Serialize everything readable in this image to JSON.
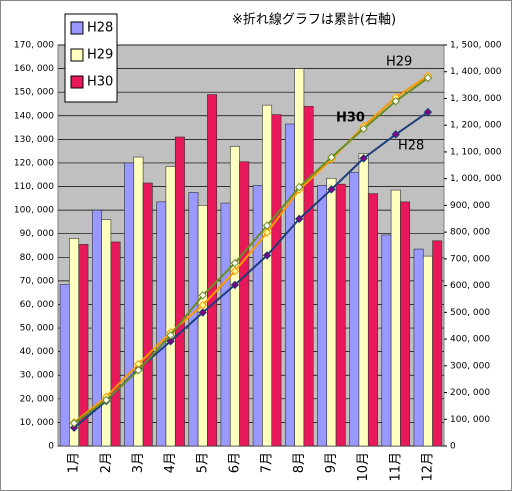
{
  "chart_data": {
    "type": "bar",
    "annotation": "※折れ線グラフは累計(右軸)",
    "categories": [
      "1月",
      "2月",
      "3月",
      "4月",
      "5月",
      "6月",
      "7月",
      "8月",
      "9月",
      "10月",
      "11月",
      "12月"
    ],
    "series": [
      {
        "name": "H28",
        "color": "#9999ff",
        "values": [
          68500,
          100000,
          120000,
          103500,
          107500,
          103000,
          110500,
          136500,
          110500,
          116000,
          89500,
          83500
        ]
      },
      {
        "name": "H29",
        "color": "#ffffc0",
        "values": [
          88000,
          96000,
          122500,
          118500,
          102000,
          127000,
          144500,
          160000,
          113500,
          124000,
          108500,
          80500
        ]
      },
      {
        "name": "H30",
        "color": "#e8185a",
        "values": [
          85500,
          86500,
          111500,
          131000,
          149000,
          120500,
          140500,
          144000,
          111000,
          107000,
          103500,
          87000
        ]
      },
      {
        "name": "H28",
        "type": "line",
        "axis": "y2",
        "color": "#1f3d7a",
        "marker_color": "#800080",
        "values": [
          68500,
          168500,
          288500,
          392000,
          499500,
          602500,
          713000,
          849500,
          960000,
          1076000,
          1165500,
          1249000
        ]
      },
      {
        "name": "H29",
        "type": "line",
        "axis": "y2",
        "color": "#ff9900",
        "marker_color": "#ffff99",
        "values": [
          88000,
          184000,
          306500,
          425000,
          527000,
          654000,
          798500,
          958500,
          1072000,
          1196000,
          1304500,
          1385000
        ]
      },
      {
        "name": "H30",
        "type": "line",
        "axis": "y2",
        "color": "#6b8e23",
        "marker_color": "#ffffff",
        "values": [
          85500,
          172000,
          283500,
          414500,
          563500,
          684000,
          824500,
          968500,
          1079500,
          1186500,
          1290000,
          1377000
        ]
      }
    ],
    "ylim": [
      0,
      170000
    ],
    "yticks": [
      0,
      {
        "value": 10000,
        "label": "10, 000"
      },
      {
        "value": 20000,
        "label": "20, 000"
      },
      {
        "value": 30000,
        "label": "30, 000"
      },
      {
        "value": 40000,
        "label": "40, 000"
      },
      {
        "value": 50000,
        "label": "50, 000"
      },
      {
        "value": 60000,
        "label": "60, 000"
      },
      {
        "value": 70000,
        "label": "70, 000"
      },
      {
        "value": 80000,
        "label": "80, 000"
      },
      {
        "value": 90000,
        "label": "90, 000"
      },
      {
        "value": 100000,
        "label": "100, 000"
      },
      {
        "value": 110000,
        "label": "110, 000"
      },
      {
        "value": 120000,
        "label": "120, 000"
      },
      {
        "value": 130000,
        "label": "130, 000"
      },
      {
        "value": 140000,
        "label": "140, 000"
      },
      {
        "value": 150000,
        "label": "150, 000"
      },
      {
        "value": 160000,
        "label": "160, 000"
      },
      {
        "value": 170000,
        "label": "170, 000"
      }
    ],
    "y2lim": [
      0,
      1500000
    ],
    "y2ticks": [
      0,
      {
        "value": 100000,
        "label": "100, 000"
      },
      {
        "value": 200000,
        "label": "200, 000"
      },
      {
        "value": 300000,
        "label": "300, 000"
      },
      {
        "value": 400000,
        "label": "400, 000"
      },
      {
        "value": 500000,
        "label": "500, 000"
      },
      {
        "value": 600000,
        "label": "600, 000"
      },
      {
        "value": 700000,
        "label": "700, 000"
      },
      {
        "value": 800000,
        "label": "800, 000"
      },
      {
        "value": 900000,
        "label": "900, 000"
      },
      {
        "value": 1000000,
        "label": "1, 000, 000"
      },
      {
        "value": 1100000,
        "label": "1, 100, 000"
      },
      {
        "value": 1200000,
        "label": "1, 200, 000"
      },
      {
        "value": 1300000,
        "label": "1, 300, 000"
      },
      {
        "value": 1400000,
        "label": "1, 400, 000"
      },
      {
        "value": 1500000,
        "label": "1, 500, 000"
      }
    ],
    "grid": true,
    "plot_background": "#c0c0c0"
  }
}
